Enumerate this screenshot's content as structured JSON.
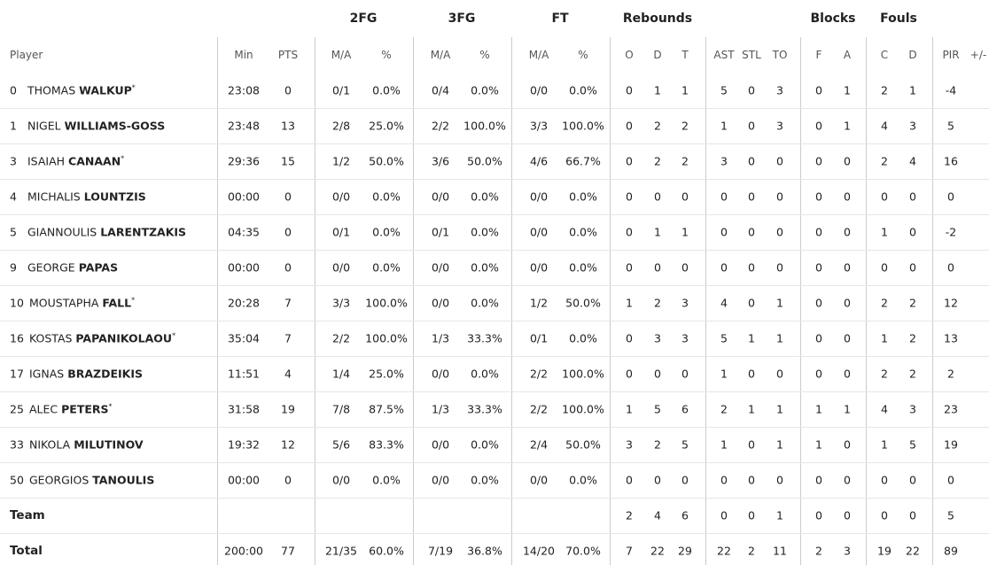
{
  "table": {
    "group_headers": [
      "2FG",
      "3FG",
      "FT",
      "Rebounds",
      "Blocks",
      "Fouls"
    ],
    "columns": [
      "Player",
      "Min",
      "PTS",
      "M/A",
      "%",
      "M/A",
      "%",
      "M/A",
      "%",
      "O",
      "D",
      "T",
      "AST",
      "STL",
      "TO",
      "F",
      "A",
      "C",
      "D",
      "PIR",
      "+/-"
    ],
    "starter_mark": "*",
    "rows": [
      {
        "number": "0",
        "first_name": "THOMAS",
        "last_name": "WALKUP",
        "starter": true,
        "cells": [
          "23:08",
          "0",
          "0/1",
          "0.0%",
          "0/4",
          "0.0%",
          "0/0",
          "0.0%",
          "0",
          "1",
          "1",
          "5",
          "0",
          "3",
          "0",
          "1",
          "2",
          "1",
          "-4"
        ]
      },
      {
        "number": "1",
        "first_name": "NIGEL",
        "last_name": "WILLIAMS-GOSS",
        "starter": false,
        "cells": [
          "23:48",
          "13",
          "2/8",
          "25.0%",
          "2/2",
          "100.0%",
          "3/3",
          "100.0%",
          "0",
          "2",
          "2",
          "1",
          "0",
          "3",
          "0",
          "1",
          "4",
          "3",
          "5"
        ]
      },
      {
        "number": "3",
        "first_name": "ISAIAH",
        "last_name": "CANAAN",
        "starter": true,
        "cells": [
          "29:36",
          "15",
          "1/2",
          "50.0%",
          "3/6",
          "50.0%",
          "4/6",
          "66.7%",
          "0",
          "2",
          "2",
          "3",
          "0",
          "0",
          "0",
          "0",
          "2",
          "4",
          "16"
        ]
      },
      {
        "number": "4",
        "first_name": "MICHALIS",
        "last_name": "LOUNTZIS",
        "starter": false,
        "cells": [
          "00:00",
          "0",
          "0/0",
          "0.0%",
          "0/0",
          "0.0%",
          "0/0",
          "0.0%",
          "0",
          "0",
          "0",
          "0",
          "0",
          "0",
          "0",
          "0",
          "0",
          "0",
          "0"
        ]
      },
      {
        "number": "5",
        "first_name": "GIANNOULIS",
        "last_name": "LARENTZAKIS",
        "starter": false,
        "cells": [
          "04:35",
          "0",
          "0/1",
          "0.0%",
          "0/1",
          "0.0%",
          "0/0",
          "0.0%",
          "0",
          "1",
          "1",
          "0",
          "0",
          "0",
          "0",
          "0",
          "1",
          "0",
          "-2"
        ]
      },
      {
        "number": "9",
        "first_name": "GEORGE",
        "last_name": "PAPAS",
        "starter": false,
        "cells": [
          "00:00",
          "0",
          "0/0",
          "0.0%",
          "0/0",
          "0.0%",
          "0/0",
          "0.0%",
          "0",
          "0",
          "0",
          "0",
          "0",
          "0",
          "0",
          "0",
          "0",
          "0",
          "0"
        ]
      },
      {
        "number": "10",
        "first_name": "MOUSTAPHA",
        "last_name": "FALL",
        "starter": true,
        "cells": [
          "20:28",
          "7",
          "3/3",
          "100.0%",
          "0/0",
          "0.0%",
          "1/2",
          "50.0%",
          "1",
          "2",
          "3",
          "4",
          "0",
          "1",
          "0",
          "0",
          "2",
          "2",
          "12"
        ]
      },
      {
        "number": "16",
        "first_name": "KOSTAS",
        "last_name": "PAPANIKOLAOU",
        "starter": true,
        "cells": [
          "35:04",
          "7",
          "2/2",
          "100.0%",
          "1/3",
          "33.3%",
          "0/1",
          "0.0%",
          "0",
          "3",
          "3",
          "5",
          "1",
          "1",
          "0",
          "0",
          "1",
          "2",
          "13"
        ]
      },
      {
        "number": "17",
        "first_name": "IGNAS",
        "last_name": "BRAZDEIKIS",
        "starter": false,
        "cells": [
          "11:51",
          "4",
          "1/4",
          "25.0%",
          "0/0",
          "0.0%",
          "2/2",
          "100.0%",
          "0",
          "0",
          "0",
          "1",
          "0",
          "0",
          "0",
          "0",
          "2",
          "2",
          "2"
        ]
      },
      {
        "number": "25",
        "first_name": "ALEC",
        "last_name": "PETERS",
        "starter": true,
        "cells": [
          "31:58",
          "19",
          "7/8",
          "87.5%",
          "1/3",
          "33.3%",
          "2/2",
          "100.0%",
          "1",
          "5",
          "6",
          "2",
          "1",
          "1",
          "1",
          "1",
          "4",
          "3",
          "23"
        ]
      },
      {
        "number": "33",
        "first_name": "NIKOLA",
        "last_name": "MILUTINOV",
        "starter": false,
        "cells": [
          "19:32",
          "12",
          "5/6",
          "83.3%",
          "0/0",
          "0.0%",
          "2/4",
          "50.0%",
          "3",
          "2",
          "5",
          "1",
          "0",
          "1",
          "1",
          "0",
          "1",
          "5",
          "19"
        ]
      },
      {
        "number": "50",
        "first_name": "GEORGIOS",
        "last_name": "TANOULIS",
        "starter": false,
        "cells": [
          "00:00",
          "0",
          "0/0",
          "0.0%",
          "0/0",
          "0.0%",
          "0/0",
          "0.0%",
          "0",
          "0",
          "0",
          "0",
          "0",
          "0",
          "0",
          "0",
          "0",
          "0",
          "0"
        ]
      }
    ],
    "team": {
      "label": "Team",
      "cells": [
        null,
        null,
        null,
        null,
        null,
        null,
        null,
        null,
        "2",
        "4",
        "6",
        "0",
        "0",
        "1",
        "0",
        "0",
        "0",
        "0",
        "5"
      ]
    },
    "total": {
      "label": "Total",
      "cells": [
        "200:00",
        "77",
        "21/35",
        "60.0%",
        "7/19",
        "36.8%",
        "14/20",
        "70.0%",
        "7",
        "22",
        "29",
        "22",
        "2",
        "11",
        "2",
        "3",
        "19",
        "22",
        "89"
      ]
    }
  }
}
